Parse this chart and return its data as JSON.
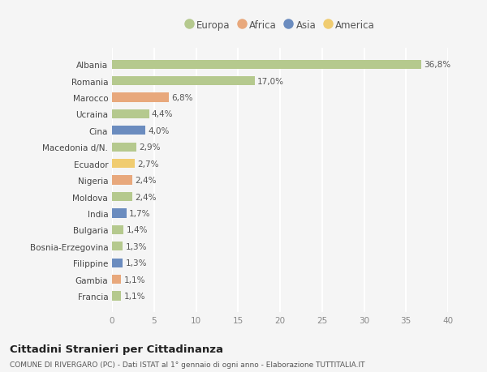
{
  "countries": [
    "Albania",
    "Romania",
    "Marocco",
    "Ucraina",
    "Cina",
    "Macedonia d/N.",
    "Ecuador",
    "Nigeria",
    "Moldova",
    "India",
    "Bulgaria",
    "Bosnia-Erzegovina",
    "Filippine",
    "Gambia",
    "Francia"
  ],
  "values": [
    36.8,
    17.0,
    6.8,
    4.4,
    4.0,
    2.9,
    2.7,
    2.4,
    2.4,
    1.7,
    1.4,
    1.3,
    1.3,
    1.1,
    1.1
  ],
  "labels": [
    "36,8%",
    "17,0%",
    "6,8%",
    "4,4%",
    "4,0%",
    "2,9%",
    "2,7%",
    "2,4%",
    "2,4%",
    "1,7%",
    "1,4%",
    "1,3%",
    "1,3%",
    "1,1%",
    "1,1%"
  ],
  "continents": [
    "Europa",
    "Europa",
    "Africa",
    "Europa",
    "Asia",
    "Europa",
    "America",
    "Africa",
    "Europa",
    "Asia",
    "Europa",
    "Europa",
    "Asia",
    "Africa",
    "Europa"
  ],
  "continent_colors": {
    "Europa": "#b5c98e",
    "Africa": "#e8a87c",
    "Asia": "#6b8cbf",
    "America": "#f0cc70"
  },
  "legend_order": [
    "Europa",
    "Africa",
    "Asia",
    "America"
  ],
  "title": "Cittadini Stranieri per Cittadinanza",
  "subtitle": "COMUNE DI RIVERGARO (PC) - Dati ISTAT al 1° gennaio di ogni anno - Elaborazione TUTTITALIA.IT",
  "xlim": [
    0,
    40
  ],
  "xticks": [
    0,
    5,
    10,
    15,
    20,
    25,
    30,
    35,
    40
  ],
  "background_color": "#f5f5f5",
  "grid_color": "#ffffff",
  "bar_height": 0.55
}
